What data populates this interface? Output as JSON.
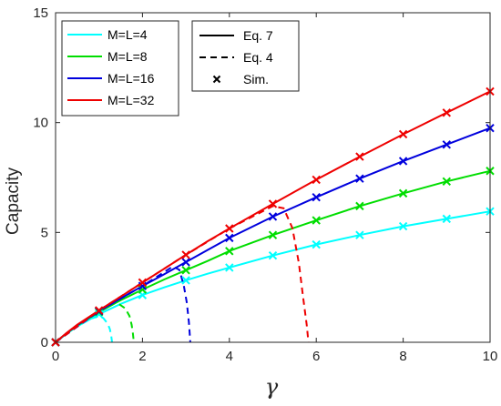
{
  "chart_data": {
    "type": "line",
    "xlabel": "γ",
    "ylabel": "Capacity",
    "xlim": [
      0,
      10
    ],
    "ylim": [
      0,
      15
    ],
    "xticks": [
      0,
      2,
      4,
      6,
      8,
      10
    ],
    "yticks": [
      0,
      5,
      10,
      15
    ],
    "grid": false,
    "legend_series": {
      "placement": "top-left",
      "entries": [
        "M=L=4",
        "M=L=8",
        "M=L=16",
        "M=L=32"
      ]
    },
    "legend_styles": {
      "placement": "top-center",
      "entries": [
        {
          "label": "Eq. 7",
          "style": "solid"
        },
        {
          "label": "Eq. 4",
          "style": "dashed"
        },
        {
          "label": "Sim.",
          "style": "marker-x"
        }
      ]
    },
    "series": [
      {
        "name": "M=L=4",
        "color": "#00FFFF",
        "eq7": {
          "x": [
            0,
            0.25,
            0.5,
            1,
            1.5,
            2,
            2.5,
            3,
            3.5,
            4,
            5,
            6,
            7,
            8,
            9,
            10
          ],
          "y": [
            0,
            0.38,
            0.72,
            1.28,
            1.75,
            2.15,
            2.5,
            2.82,
            3.12,
            3.4,
            3.95,
            4.45,
            4.88,
            5.28,
            5.62,
            5.96
          ]
        },
        "eq4": {
          "x": [
            0,
            0.25,
            0.5,
            0.75,
            1.0,
            1.1,
            1.2,
            1.25,
            1.28,
            1.3
          ],
          "y": [
            0,
            0.38,
            0.72,
            1.02,
            1.2,
            1.1,
            0.85,
            0.6,
            0.3,
            0
          ]
        },
        "sim": {
          "x": [
            0,
            1,
            2,
            3,
            4,
            5,
            6,
            7,
            8,
            9,
            10
          ],
          "y": [
            0,
            1.28,
            2.15,
            2.82,
            3.4,
            3.95,
            4.45,
            4.88,
            5.28,
            5.62,
            5.96
          ]
        }
      },
      {
        "name": "M=L=8",
        "color": "#00DD00",
        "eq7": {
          "x": [
            0,
            0.25,
            0.5,
            1,
            1.5,
            2,
            2.5,
            3,
            3.5,
            4,
            5,
            6,
            7,
            8,
            9,
            10
          ],
          "y": [
            0,
            0.4,
            0.76,
            1.38,
            1.92,
            2.4,
            2.86,
            3.28,
            3.7,
            4.15,
            4.88,
            5.55,
            6.2,
            6.78,
            7.32,
            7.8
          ]
        },
        "eq4": {
          "x": [
            0,
            0.5,
            1,
            1.4,
            1.6,
            1.7,
            1.75,
            1.78,
            1.8
          ],
          "y": [
            0,
            0.76,
            1.38,
            1.82,
            1.55,
            1.2,
            0.8,
            0.4,
            0
          ]
        },
        "sim": {
          "x": [
            0,
            1,
            2,
            3,
            4,
            5,
            6,
            7,
            8,
            9,
            10
          ],
          "y": [
            0,
            1.38,
            2.4,
            3.28,
            4.15,
            4.88,
            5.55,
            6.2,
            6.78,
            7.32,
            7.8
          ]
        }
      },
      {
        "name": "M=L=16",
        "color": "#0000DD",
        "eq7": {
          "x": [
            0,
            0.25,
            0.5,
            1,
            1.5,
            2,
            2.5,
            3,
            3.5,
            4,
            5,
            6,
            7,
            8,
            9,
            10
          ],
          "y": [
            0,
            0.41,
            0.78,
            1.42,
            2.0,
            2.56,
            3.1,
            3.65,
            4.2,
            4.75,
            5.72,
            6.6,
            7.45,
            8.25,
            9.0,
            9.75
          ]
        },
        "eq4": {
          "x": [
            0,
            1,
            2,
            2.7,
            2.85,
            2.95,
            3.02,
            3.07,
            3.1
          ],
          "y": [
            0,
            1.42,
            2.56,
            3.45,
            3.3,
            2.6,
            1.8,
            0.9,
            0
          ]
        },
        "sim": {
          "x": [
            0,
            1,
            2,
            3,
            4,
            5,
            6,
            7,
            8,
            9,
            10
          ],
          "y": [
            0,
            1.42,
            2.56,
            3.65,
            4.75,
            5.72,
            6.6,
            7.45,
            8.25,
            9.0,
            9.75
          ]
        }
      },
      {
        "name": "M=L=32",
        "color": "#EE0000",
        "eq7": {
          "x": [
            0,
            0.25,
            0.5,
            1,
            1.5,
            2,
            2.5,
            3,
            3.5,
            4,
            5,
            6,
            7,
            8,
            9,
            10
          ],
          "y": [
            0,
            0.42,
            0.8,
            1.45,
            2.08,
            2.72,
            3.35,
            3.98,
            4.6,
            5.18,
            6.3,
            7.4,
            8.45,
            9.47,
            10.45,
            11.42
          ]
        },
        "eq4": {
          "x": [
            0,
            1,
            2,
            3,
            4,
            5,
            5.25,
            5.45,
            5.6,
            5.7,
            5.78,
            5.82
          ],
          "y": [
            0,
            1.45,
            2.72,
            3.98,
            5.18,
            6.2,
            6.1,
            5.2,
            3.6,
            2.0,
            0.8,
            0
          ]
        },
        "sim": {
          "x": [
            0,
            1,
            2,
            3,
            4,
            5,
            6,
            7,
            8,
            9,
            10
          ],
          "y": [
            0,
            1.45,
            2.72,
            3.98,
            5.18,
            6.3,
            7.4,
            8.45,
            9.47,
            10.45,
            11.42
          ]
        }
      }
    ]
  }
}
